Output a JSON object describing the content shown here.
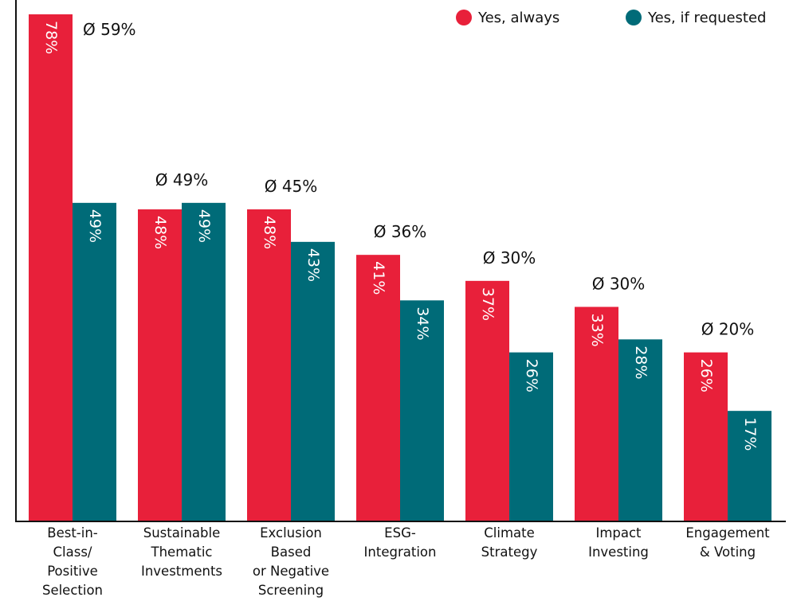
{
  "chart_data": {
    "type": "bar",
    "categories": [
      "Best-in-\nClass/\nPositive\nSelection",
      "Sustainable\nThematic\nInvestments",
      "Exclusion\nBased\nor Negative\nScreening",
      "ESG-\nIntegration",
      "Climate\nStrategy",
      "Impact\nInvesting",
      "Engagement\n& Voting"
    ],
    "series": [
      {
        "name": "Yes, always",
        "color": "#e8203a",
        "values": [
          78,
          48,
          48,
          41,
          37,
          33,
          26
        ],
        "value_labels": [
          "78%",
          "48%",
          "48%",
          "41%",
          "37%",
          "33%",
          "26%"
        ]
      },
      {
        "name": "Yes, if requested",
        "color": "#006b78",
        "values": [
          49,
          49,
          43,
          34,
          26,
          28,
          17
        ],
        "value_labels": [
          "49%",
          "49%",
          "43%",
          "34%",
          "26%",
          "28%",
          "17%"
        ]
      }
    ],
    "annotations": [
      "Ø 59%",
      "Ø 49%",
      "Ø 45%",
      "Ø 36%",
      "Ø 30%",
      "Ø 30%",
      "Ø 20%"
    ]
  }
}
